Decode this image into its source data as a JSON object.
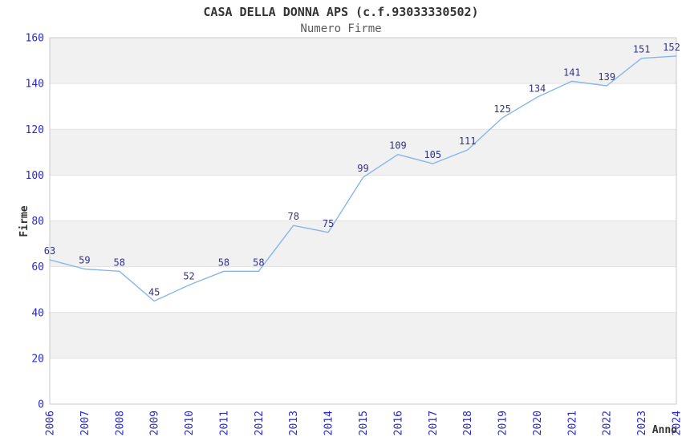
{
  "page": {
    "background": "#ffffff"
  },
  "chart_data": {
    "type": "line",
    "title": "CASA DELLA DONNA APS (c.f.93033330502)",
    "subtitle": "Numero Firme",
    "xlabel": "Anno",
    "ylabel": "Firme",
    "categories": [
      "2006",
      "2007",
      "2008",
      "2009",
      "2010",
      "2011",
      "2012",
      "2013",
      "2014",
      "2015",
      "2016",
      "2017",
      "2018",
      "2019",
      "2020",
      "2021",
      "2022",
      "2023",
      "2024"
    ],
    "series": [
      {
        "name": "Numero Firme",
        "values": [
          63,
          59,
          58,
          45,
          52,
          58,
          58,
          78,
          75,
          99,
          109,
          105,
          111,
          125,
          134,
          141,
          139,
          151,
          152
        ]
      }
    ],
    "ylim": [
      0,
      160
    ],
    "yticks": [
      0,
      20,
      40,
      60,
      80,
      100,
      120,
      140,
      160
    ],
    "show_value_labels": true,
    "legend_position": "none",
    "grid": "alternating-horizontal-bands",
    "colors": {
      "line": "#88b6ea",
      "tick_label": "#2727dd",
      "value_label": "#333385",
      "band_gray": "#f1f1f1",
      "band_white": "#ffffff",
      "gridline": "#e2e2e2",
      "plot_border": "#c9c9c9",
      "title": "#333333",
      "subtitle": "#595959",
      "axis_label": "#333333"
    }
  }
}
